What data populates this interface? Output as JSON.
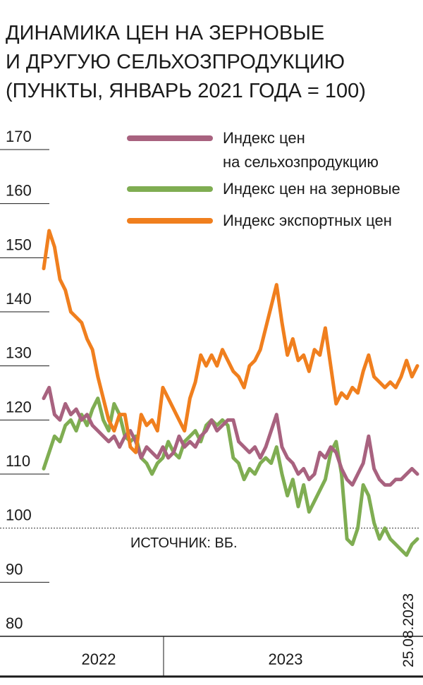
{
  "chart_data": {
    "type": "line",
    "title": "ДИНАМИКА ЦЕН НА ЗЕРНОВЫЕ\nИ ДРУГУЮ СЕЛЬХОЗПРОДУКЦИЮ\n(ПУНКТЫ, ЯНВАРЬ 2021 ГОДА = 100)",
    "source": "ИСТОЧНИК: ВБ.",
    "date": "25.08.2023",
    "period_labels": [
      "2022",
      "2023"
    ],
    "categories": [
      null,
      null,
      null,
      null,
      null,
      null,
      null,
      null,
      null,
      null,
      null,
      null,
      null,
      null,
      null,
      null,
      null,
      null,
      null,
      null,
      null,
      null,
      null,
      null,
      null,
      null,
      null,
      null,
      null,
      null,
      null,
      null,
      null,
      null,
      null,
      null,
      null,
      null,
      null,
      null,
      null,
      null,
      null,
      null,
      null,
      null,
      null,
      null,
      null,
      null,
      null,
      null,
      null,
      null,
      null,
      null,
      null,
      null,
      null,
      null,
      null,
      null,
      null,
      null,
      null,
      null,
      null,
      null,
      null,
      null
    ],
    "ylim": [
      80,
      170
    ],
    "yticks": [
      80,
      90,
      100,
      110,
      120,
      130,
      140,
      150,
      160,
      170
    ],
    "reference_line": 100,
    "series": [
      {
        "name": "Индекс цен\nна сельхозпродукцию",
        "color": "#a8627f",
        "values": [
          124,
          126,
          121,
          120,
          123,
          121,
          122,
          120,
          121,
          119,
          118,
          117,
          116,
          117,
          115,
          117,
          118,
          116,
          113,
          115,
          114,
          113,
          115,
          113,
          114,
          117,
          115,
          116,
          115,
          117,
          118,
          120,
          118,
          119,
          120,
          120,
          116,
          115,
          114,
          115,
          113,
          115,
          118,
          121,
          115,
          113,
          112,
          110,
          111,
          109,
          110,
          114,
          113,
          115,
          114,
          111,
          109,
          108,
          110,
          112,
          117,
          111,
          109,
          108,
          108,
          109,
          109,
          110,
          111,
          110
        ]
      },
      {
        "name": "Индекс цен на зерновые",
        "color": "#7fad52",
        "values": [
          111,
          114,
          117,
          116,
          119,
          120,
          118,
          121,
          119,
          122,
          124,
          120,
          118,
          123,
          121,
          117,
          116,
          117,
          113,
          112,
          110,
          112,
          113,
          116,
          114,
          113,
          116,
          117,
          118,
          116,
          119,
          120,
          119,
          120,
          119,
          113,
          112,
          109,
          111,
          110,
          112,
          113,
          112,
          115,
          110,
          106,
          109,
          104,
          108,
          103,
          105,
          107,
          109,
          114,
          116,
          110,
          98,
          97,
          100,
          108,
          106,
          101,
          98,
          100,
          98,
          97,
          96,
          95,
          97,
          98
        ]
      },
      {
        "name": "Индекс экспортных цен",
        "color": "#f07f1e",
        "values": [
          148,
          155,
          152,
          146,
          144,
          140,
          139,
          138,
          135,
          133,
          128,
          124,
          120,
          118,
          121,
          121,
          115,
          114,
          121,
          119,
          120,
          118,
          126,
          124,
          122,
          120,
          118,
          124,
          127,
          132,
          130,
          132,
          130,
          133,
          131,
          129,
          128,
          126,
          130,
          131,
          133,
          137,
          141,
          145,
          138,
          132,
          135,
          131,
          132,
          129,
          133,
          132,
          137,
          130,
          123,
          125,
          124,
          126,
          125,
          129,
          132,
          128,
          127,
          126,
          127,
          126,
          128,
          131,
          128,
          130
        ]
      }
    ]
  }
}
